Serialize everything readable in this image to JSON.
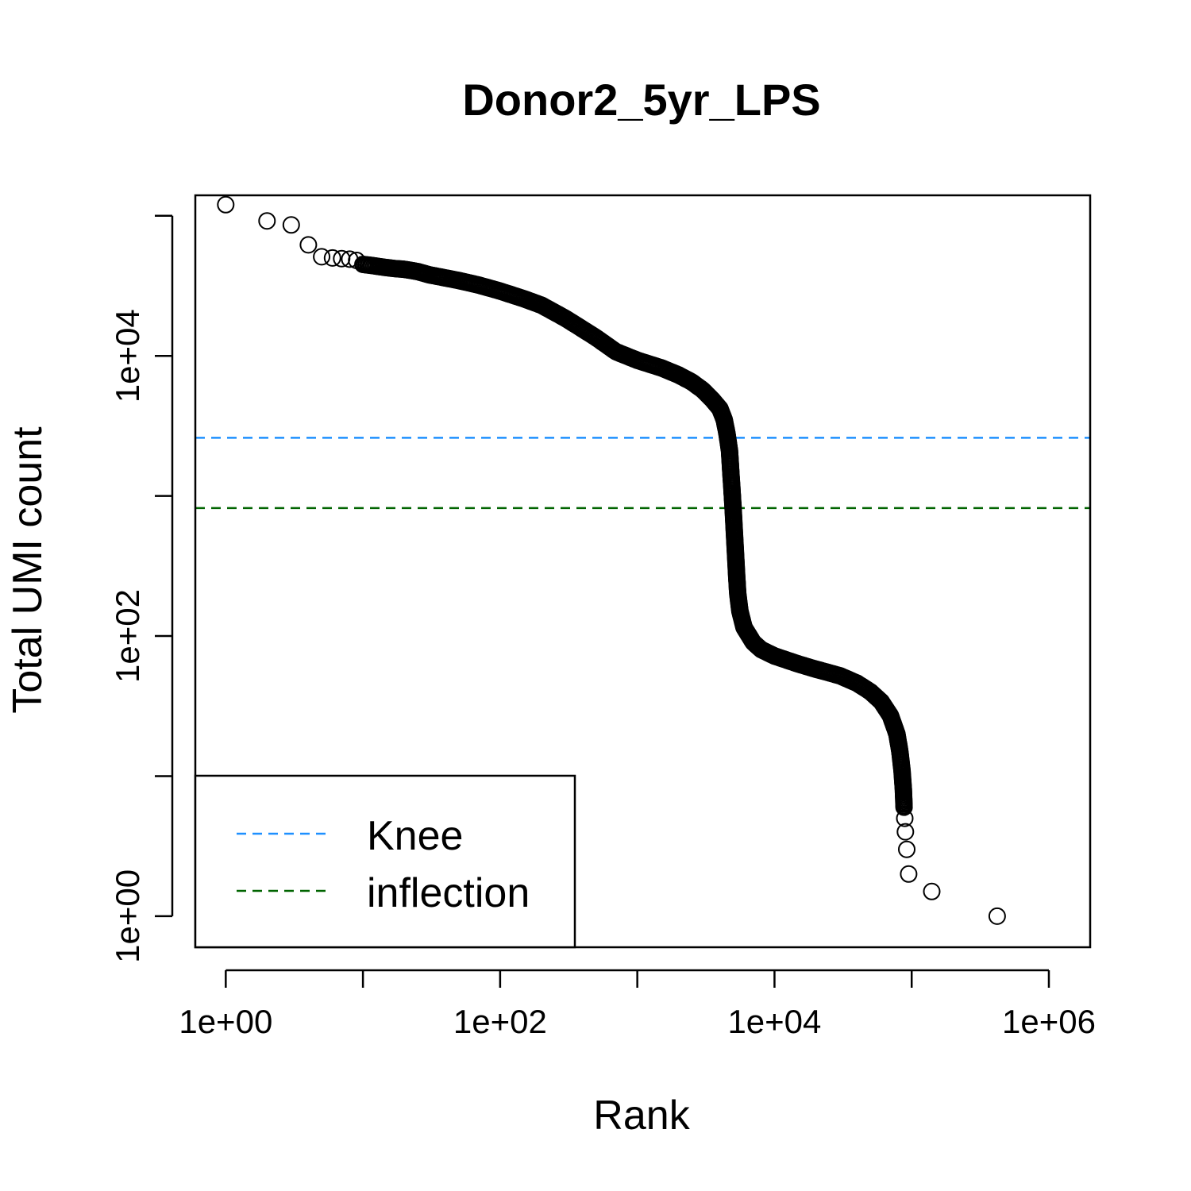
{
  "chart_data": {
    "type": "scatter",
    "title": "Donor2_5yr_LPS",
    "xlabel": "Rank",
    "ylabel": "Total UMI count",
    "x_scale": "log10",
    "y_scale": "log10",
    "xlim": [
      0.6,
      2000000
    ],
    "ylim": [
      0.6,
      140000
    ],
    "x_ticks": [
      {
        "value": 1,
        "label": "1e+00"
      },
      {
        "value": 10,
        "label": ""
      },
      {
        "value": 100,
        "label": "1e+02"
      },
      {
        "value": 1000,
        "label": ""
      },
      {
        "value": 10000,
        "label": "1e+04"
      },
      {
        "value": 100000,
        "label": ""
      },
      {
        "value": 1000000,
        "label": "1e+06"
      }
    ],
    "y_ticks": [
      {
        "value": 1,
        "label": "1e+00"
      },
      {
        "value": 10,
        "label": ""
      },
      {
        "value": 100,
        "label": "1e+02"
      },
      {
        "value": 1000,
        "label": ""
      },
      {
        "value": 10000,
        "label": "1e+04"
      },
      {
        "value": 100000,
        "label": ""
      }
    ],
    "grid": false,
    "marker": "open-circle",
    "marker_color": "#000000",
    "series": [
      {
        "points": [
          [
            1,
            120000
          ],
          [
            2,
            92000
          ],
          [
            3,
            86000
          ],
          [
            4,
            62000
          ],
          [
            5,
            51000
          ],
          [
            6,
            50000
          ],
          [
            7,
            49500
          ],
          [
            8,
            49000
          ],
          [
            9,
            48000
          ],
          [
            10,
            45000
          ],
          [
            12,
            44000
          ],
          [
            14,
            43000
          ],
          [
            17,
            42000
          ],
          [
            20,
            41500
          ],
          [
            25,
            40000
          ],
          [
            30,
            38000
          ],
          [
            40,
            36000
          ],
          [
            50,
            34500
          ],
          [
            70,
            32000
          ],
          [
            100,
            29000
          ],
          [
            150,
            25500
          ],
          [
            200,
            23000
          ],
          [
            300,
            18500
          ],
          [
            400,
            15500
          ],
          [
            500,
            13500
          ],
          [
            700,
            10700
          ],
          [
            1000,
            9300
          ],
          [
            1500,
            8200
          ],
          [
            2000,
            7300
          ],
          [
            2500,
            6500
          ],
          [
            3000,
            5700
          ],
          [
            3500,
            4900
          ],
          [
            4000,
            4200
          ],
          [
            4300,
            3500
          ],
          [
            4500,
            2800
          ],
          [
            4700,
            2100
          ],
          [
            4800,
            1500
          ],
          [
            4900,
            1100
          ],
          [
            5000,
            800
          ],
          [
            5100,
            550
          ],
          [
            5200,
            380
          ],
          [
            5300,
            270
          ],
          [
            5400,
            200
          ],
          [
            5600,
            150
          ],
          [
            6000,
            115
          ],
          [
            7000,
            90
          ],
          [
            8000,
            80
          ],
          [
            10000,
            72
          ],
          [
            15000,
            63
          ],
          [
            20000,
            58
          ],
          [
            30000,
            52
          ],
          [
            40000,
            46
          ],
          [
            50000,
            40
          ],
          [
            60000,
            34
          ],
          [
            70000,
            27
          ],
          [
            78000,
            20
          ],
          [
            82000,
            15
          ],
          [
            85000,
            11
          ],
          [
            87000,
            8
          ],
          [
            88000,
            6
          ],
          [
            89000,
            5
          ],
          [
            90000,
            4
          ],
          [
            92000,
            3
          ],
          [
            95000,
            2
          ],
          [
            140000,
            1.5
          ],
          [
            420000,
            1
          ]
        ]
      }
    ],
    "hlines": [
      {
        "name": "Knee",
        "y": 2600,
        "color": "#1E90FF",
        "dash": "dashed"
      },
      {
        "name": "inflection",
        "y": 820,
        "color": "#006400",
        "dash": "dashed"
      }
    ],
    "legend": {
      "position": "bottom-left",
      "entries": [
        {
          "label": "Knee",
          "color": "#1E90FF"
        },
        {
          "label": "inflection",
          "color": "#006400"
        }
      ]
    }
  }
}
